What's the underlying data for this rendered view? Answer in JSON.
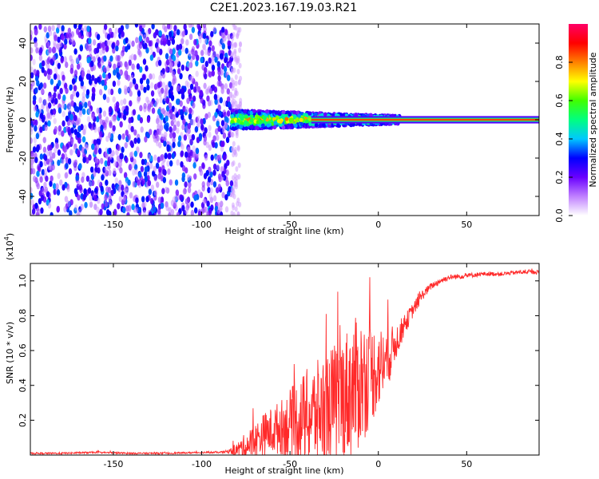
{
  "title": "C2E1.2023.167.19.03.R21",
  "chart_data": [
    {
      "type": "heatmap",
      "xlabel": "Height of straight line (km)",
      "ylabel": "Frequency (Hz)",
      "xlim": [
        -197,
        91
      ],
      "ylim": [
        -50,
        50
      ],
      "xticks": [
        -150,
        -100,
        -50,
        0,
        50
      ],
      "yticks": [
        -40,
        -20,
        0,
        20,
        40
      ],
      "colorbar": {
        "label": "Normalized spectral amplitude",
        "range": [
          0,
          1
        ],
        "ticks": [
          0.0,
          0.2,
          0.4,
          0.6,
          0.8
        ],
        "colormap": [
          "#ffffff",
          "#c080ff",
          "#6a00ff",
          "#0000ff",
          "#00c8ff",
          "#00ff80",
          "#40ff00",
          "#ffff00",
          "#ff8000",
          "#ff0000",
          "#ff0066"
        ]
      },
      "regions": [
        {
          "x_range": [
            -197,
            -83
          ],
          "description_level": 0.25,
          "kind": "noise"
        },
        {
          "x_range": [
            -83,
            12
          ],
          "center_freq": 0,
          "spread_hz": 5,
          "peak_level": 0.9,
          "kind": "signal-band"
        },
        {
          "x_range": [
            12,
            91
          ],
          "center_freq": 0,
          "spread_hz": 1.5,
          "peak_level": 0.85,
          "kind": "steady-line"
        }
      ]
    },
    {
      "type": "line",
      "xlabel": "Height of straight line (km)",
      "ylabel": "SNR (10 * v/v)",
      "y_scale_label": "(x10",
      "y_scale_exp": "4",
      "y_scale_close": ")",
      "xlim": [
        -197,
        91
      ],
      "ylim": [
        0,
        1.1
      ],
      "xticks": [
        -150,
        -100,
        -50,
        0,
        50
      ],
      "yticks": [
        0.2,
        0.4,
        0.6,
        0.8,
        1.0
      ],
      "series": [
        {
          "color": "#ff2a2a",
          "x": [
            -197,
            -180,
            -160,
            -140,
            -120,
            -100,
            -90,
            -85,
            -80,
            -75,
            -70,
            -65,
            -60,
            -55,
            -50,
            -45,
            -40,
            -35,
            -30,
            -25,
            -20,
            -15,
            -10,
            -5,
            0,
            5,
            10,
            15,
            20,
            25,
            30,
            35,
            40,
            50,
            60,
            70,
            80,
            91
          ],
          "y": [
            0.01,
            0.01,
            0.015,
            0.01,
            0.01,
            0.015,
            0.015,
            0.02,
            0.03,
            0.05,
            0.08,
            0.12,
            0.14,
            0.16,
            0.18,
            0.2,
            0.22,
            0.24,
            0.27,
            0.3,
            0.34,
            0.38,
            0.42,
            0.46,
            0.5,
            0.55,
            0.65,
            0.75,
            0.84,
            0.92,
            0.97,
            1.0,
            1.02,
            1.03,
            1.04,
            1.04,
            1.05,
            1.05
          ],
          "noise_amp": [
            0.005,
            0.005,
            0.005,
            0.005,
            0.005,
            0.005,
            0.005,
            0.01,
            0.04,
            0.08,
            0.1,
            0.12,
            0.14,
            0.16,
            0.2,
            0.24,
            0.28,
            0.3,
            0.32,
            0.34,
            0.36,
            0.4,
            0.38,
            0.3,
            0.24,
            0.18,
            0.1,
            0.06,
            0.04,
            0.03,
            0.02,
            0.02,
            0.015,
            0.015,
            0.012,
            0.012,
            0.012,
            0.012
          ]
        }
      ]
    }
  ]
}
